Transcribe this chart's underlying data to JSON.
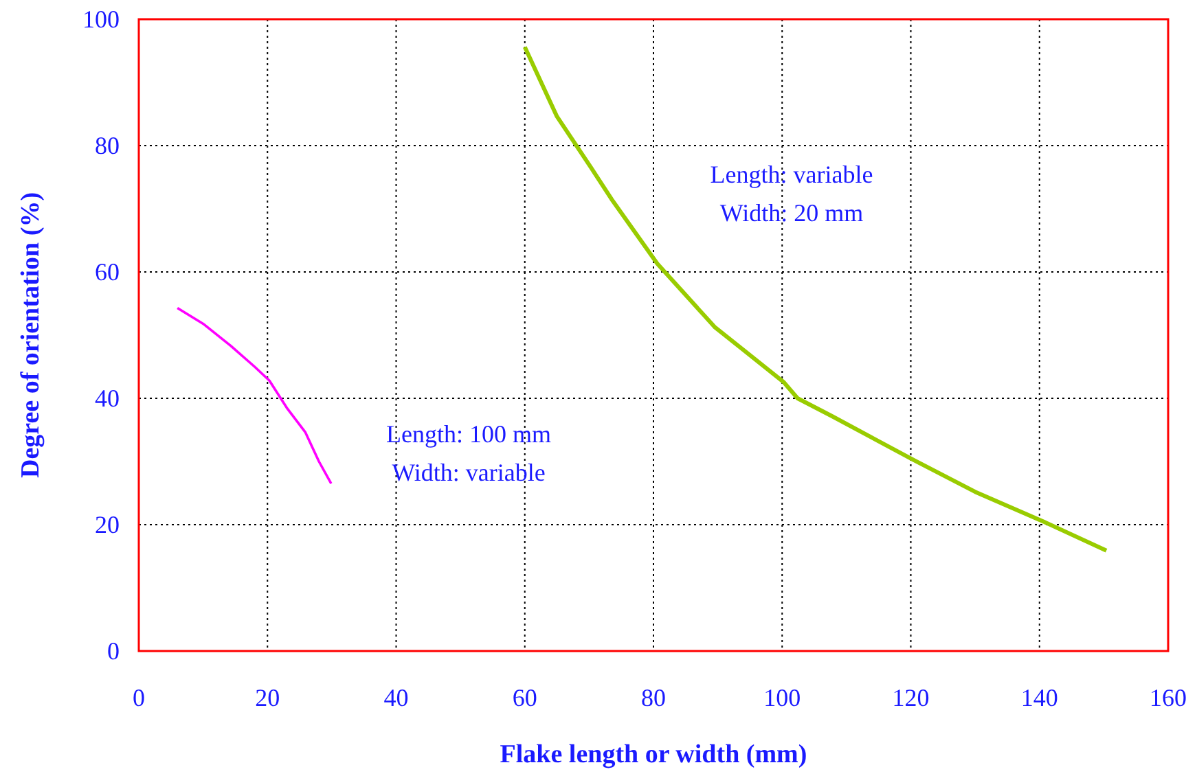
{
  "chart_data": {
    "type": "line",
    "xlabel": "Flake length or width (mm)",
    "ylabel": "Degree of orientation (%)",
    "xlim": [
      0,
      160
    ],
    "xticks": [
      0,
      20,
      40,
      60,
      80,
      100,
      120,
      140,
      160
    ],
    "ylim": [
      0,
      100
    ],
    "yticks": [
      0,
      20,
      40,
      60,
      80,
      100
    ],
    "grid": true,
    "line_style": "solid",
    "series": [
      {
        "color": "#ff00ff",
        "x": [
          6,
          10,
          14.3,
          18,
          20.3,
          23,
          25.9,
          28,
          29.9
        ],
        "values": [
          54.3,
          51.8,
          48.3,
          45,
          42.8,
          38.5,
          34.6,
          30,
          26.5
        ]
      },
      {
        "color": "#99cc00",
        "x": [
          60,
          65,
          70.3,
          73.5,
          80.6,
          89.5,
          100.2,
          102.4,
          107.7,
          120.5,
          130,
          140.8,
          150.4
        ],
        "values": [
          95.6,
          84.6,
          76.5,
          71.5,
          61.3,
          51.3,
          42.6,
          40,
          37.2,
          30.2,
          25.2,
          20.4,
          15.9
        ]
      }
    ],
    "annotations": [
      "Length: variable\nWidth: 20 mm",
      "Length: 100 mm\nWidth: variable"
    ]
  }
}
